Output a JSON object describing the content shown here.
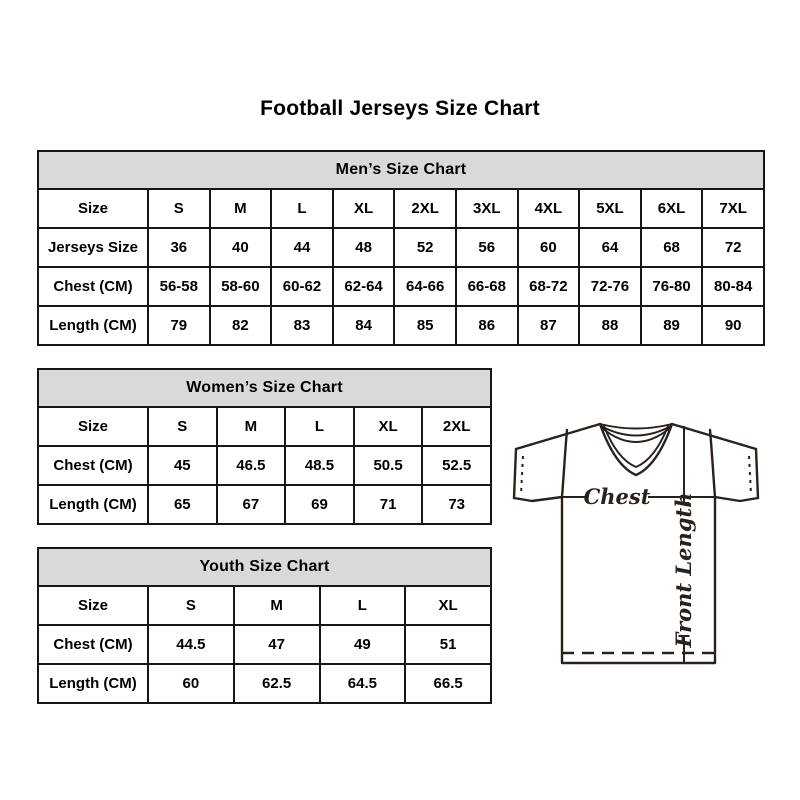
{
  "page": {
    "title": "Football Jerseys Size Chart"
  },
  "colors": {
    "header_bg": "#d9d9d9",
    "table_border": "#161616",
    "text": "#000000",
    "diagram_line": "#2a211c"
  },
  "chart_data": [
    {
      "type": "table",
      "title": "Men’s Size Chart",
      "columns": [
        "Size",
        "S",
        "M",
        "L",
        "XL",
        "2XL",
        "3XL",
        "4XL",
        "5XL",
        "6XL",
        "7XL"
      ],
      "rows": [
        [
          "Jerseys Size",
          "36",
          "40",
          "44",
          "48",
          "52",
          "56",
          "60",
          "64",
          "68",
          "72"
        ],
        [
          "Chest (CM)",
          "56-58",
          "58-60",
          "60-62",
          "62-64",
          "64-66",
          "66-68",
          "68-72",
          "72-76",
          "76-80",
          "80-84"
        ],
        [
          "Length (CM)",
          "79",
          "82",
          "83",
          "84",
          "85",
          "86",
          "87",
          "88",
          "89",
          "90"
        ]
      ]
    },
    {
      "type": "table",
      "title": "Women’s Size Chart",
      "columns": [
        "Size",
        "S",
        "M",
        "L",
        "XL",
        "2XL"
      ],
      "rows": [
        [
          "Chest (CM)",
          "45",
          "46.5",
          "48.5",
          "50.5",
          "52.5"
        ],
        [
          "Length (CM)",
          "65",
          "67",
          "69",
          "71",
          "73"
        ]
      ]
    },
    {
      "type": "table",
      "title": "Youth Size Chart",
      "columns": [
        "Size",
        "S",
        "M",
        "L",
        "XL"
      ],
      "rows": [
        [
          "Chest (CM)",
          "44.5",
          "47",
          "49",
          "51"
        ],
        [
          "Length (CM)",
          "60",
          "62.5",
          "64.5",
          "66.5"
        ]
      ]
    }
  ],
  "diagram": {
    "chest_label": "Chest",
    "front_length_label": "Front Length"
  }
}
